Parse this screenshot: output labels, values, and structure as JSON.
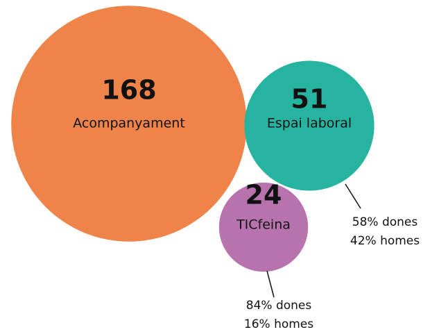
{
  "chart_data": {
    "type": "bubble",
    "categories": [
      "Acompanyament",
      "Espai laboral",
      "TICfeina"
    ],
    "values": [
      168,
      51,
      24
    ],
    "colors": [
      "#ee8449",
      "#26b3a0",
      "#b873ae"
    ],
    "annotations": [
      {
        "category": 1,
        "lines": [
          "58% dones",
          "42% homes"
        ]
      },
      {
        "category": 2,
        "lines": [
          "84% dones",
          "16% homes"
        ]
      }
    ]
  }
}
